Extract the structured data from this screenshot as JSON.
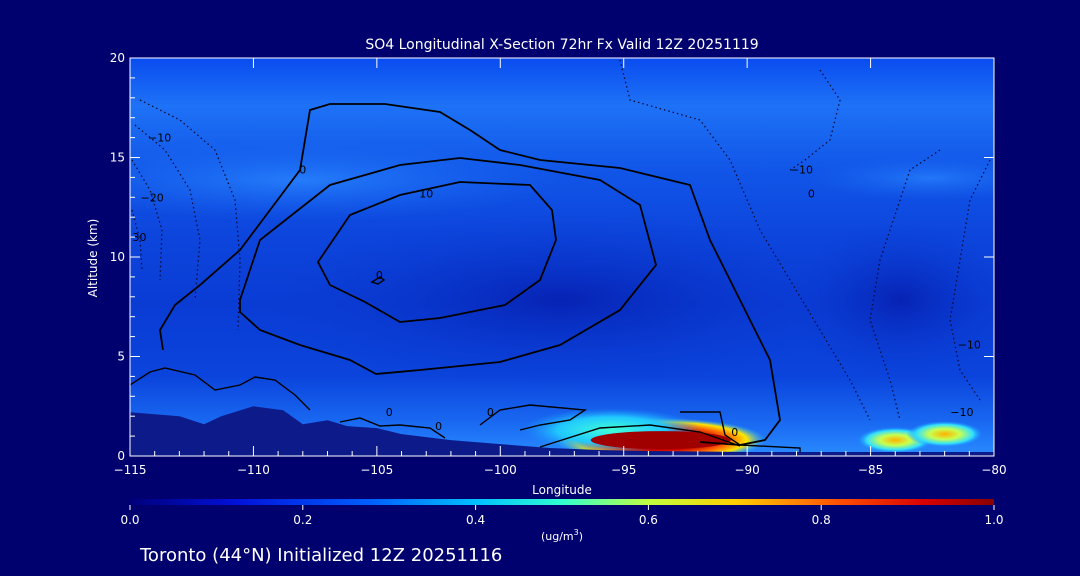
{
  "chart_data": {
    "type": "heatmap",
    "title": "SO4 Longitudinal X-Section 72hr  Fx Valid 12Z 20251119",
    "xlabel": "Longitude",
    "ylabel": "Altitude (km)",
    "xlim": [
      -115,
      -80
    ],
    "ylim": [
      0,
      20
    ],
    "x_ticks": [
      -115,
      -110,
      -105,
      -100,
      -95,
      -90,
      -85,
      -80
    ],
    "x_tick_labels": [
      "−115",
      "−110",
      "−105",
      "−100",
      "−95",
      "−90",
      "−85",
      "−80"
    ],
    "y_ticks": [
      0,
      5,
      10,
      15,
      20
    ],
    "y_tick_labels": [
      "0",
      "5",
      "10",
      "15",
      "20"
    ],
    "colorbar": {
      "label_base": "(ug/m",
      "label_sup": "3",
      "label_end": ")",
      "min": 0.0,
      "max": 1.0,
      "ticks": [
        0.0,
        0.2,
        0.4,
        0.6,
        0.8,
        1.0
      ],
      "tick_labels": [
        "0.0",
        "0.2",
        "0.4",
        "0.6",
        "0.8",
        "1.0"
      ]
    },
    "terrain": [
      {
        "x": -115.0,
        "y": 2.2
      },
      {
        "x": -114.0,
        "y": 2.1
      },
      {
        "x": -113.0,
        "y": 2.0
      },
      {
        "x": -112.0,
        "y": 1.6
      },
      {
        "x": -111.3,
        "y": 2.0
      },
      {
        "x": -110.0,
        "y": 2.5
      },
      {
        "x": -108.8,
        "y": 2.3
      },
      {
        "x": -108.0,
        "y": 1.6
      },
      {
        "x": -107.0,
        "y": 1.8
      },
      {
        "x": -106.2,
        "y": 1.5
      },
      {
        "x": -105.0,
        "y": 1.4
      },
      {
        "x": -104.0,
        "y": 1.1
      },
      {
        "x": -102.0,
        "y": 0.8
      },
      {
        "x": -100.0,
        "y": 0.6
      },
      {
        "x": -98.0,
        "y": 0.4
      },
      {
        "x": -96.0,
        "y": 0.3
      },
      {
        "x": -94.0,
        "y": 0.25
      },
      {
        "x": -90.0,
        "y": 0.2
      },
      {
        "x": -85.0,
        "y": 0.2
      },
      {
        "x": -80.0,
        "y": 0.2
      }
    ],
    "hotspots": [
      {
        "lon": -93.5,
        "alt": 0.8,
        "value": 1.0
      },
      {
        "lon": -95.5,
        "alt": 1.3,
        "value": 0.4
      },
      {
        "lon": -84.0,
        "alt": 0.8,
        "value": 0.65
      },
      {
        "lon": -82.0,
        "alt": 1.1,
        "value": 0.6
      }
    ],
    "contour_labels": [
      {
        "text": "0",
        "lon": -108,
        "alt": 14.2
      },
      {
        "text": "10",
        "lon": -103,
        "alt": 13.0
      },
      {
        "text": "0",
        "lon": -104.9,
        "alt": 8.9
      },
      {
        "text": "0",
        "lon": -90.5,
        "alt": 1.0
      },
      {
        "text": "0",
        "lon": -100.4,
        "alt": 2.0
      },
      {
        "text": "0",
        "lon": -104.5,
        "alt": 2.0
      },
      {
        "text": "0",
        "lon": -102.5,
        "alt": 1.3
      },
      {
        "text": "0",
        "lon": -87.4,
        "alt": 13.0
      },
      {
        "text": "−10",
        "lon": -113.8,
        "alt": 15.8
      },
      {
        "text": "−20",
        "lon": -114.1,
        "alt": 12.8
      },
      {
        "text": "−30",
        "lon": -114.8,
        "alt": 10.8
      },
      {
        "text": "−10",
        "lon": -87.8,
        "alt": 14.2
      },
      {
        "text": "−10",
        "lon": -81.0,
        "alt": 5.4
      },
      {
        "text": "−10",
        "lon": -81.3,
        "alt": 2.0
      }
    ]
  },
  "footer": {
    "caption": "Toronto (44°N) Initialized 12Z 20251116"
  }
}
